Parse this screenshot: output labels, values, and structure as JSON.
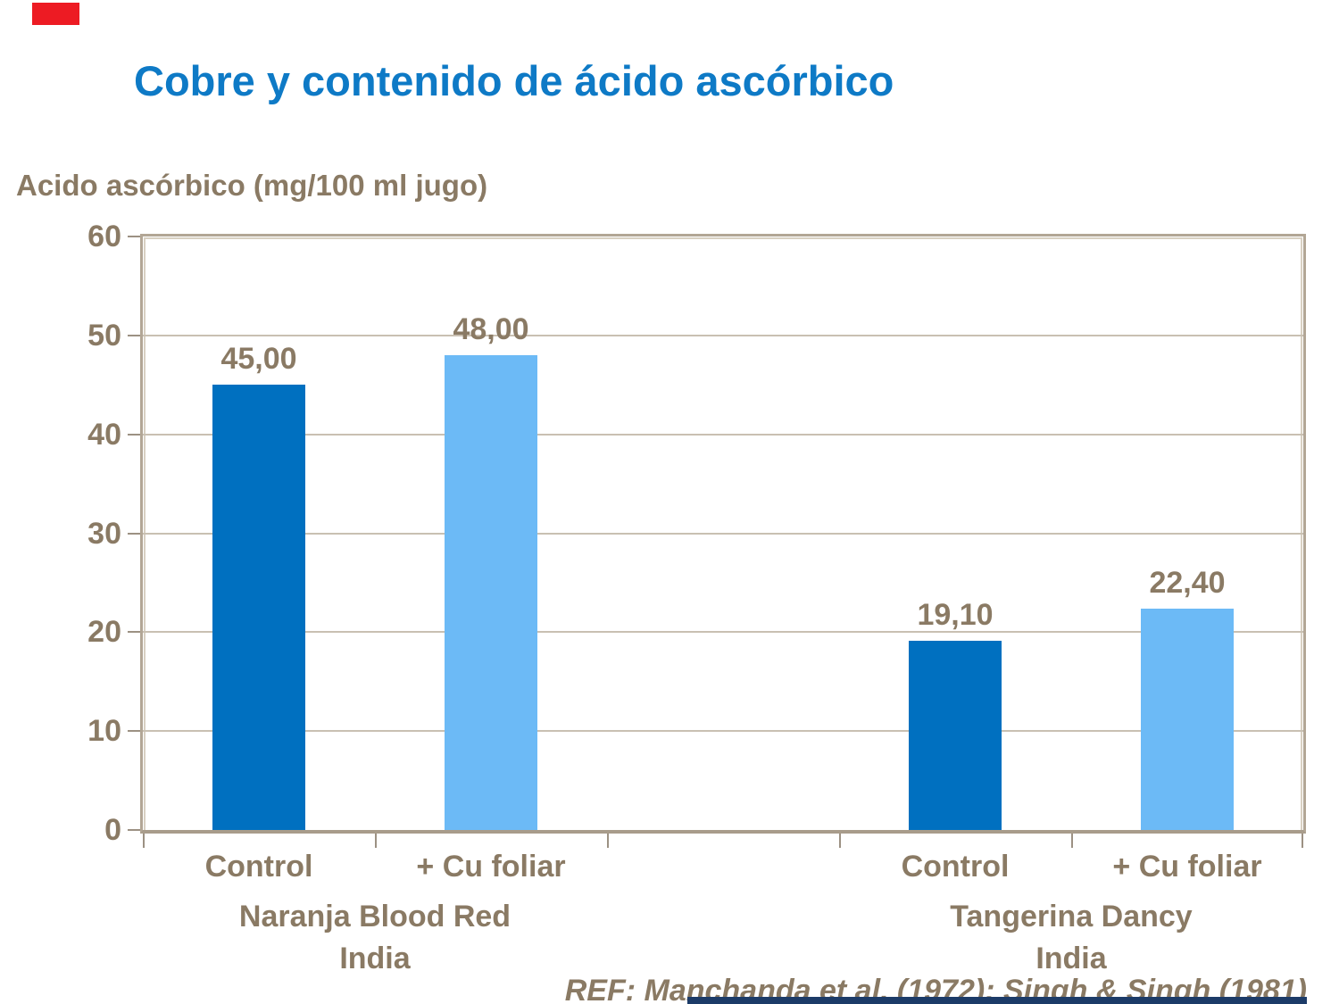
{
  "slide": {
    "title": "Cobre y contenido de ácido ascórbico",
    "y_axis_title": "Acido ascórbico (mg/100 ml jugo)",
    "reference": "REF: Manchanda et al. (1972); Singh & Singh (1981)",
    "colors": {
      "title_blue": "#0E7AC6",
      "text_brown": "#8A7A64",
      "bar_dark_blue": "#0070C0",
      "bar_light_blue": "#6CBAF6",
      "gridline_tan": "#C9C0B2",
      "plot_border_tan": "#B2A695",
      "red_marker": "#ED1B23",
      "bottom_strip_navy": "#1C3B68"
    }
  },
  "chart_data": {
    "type": "bar",
    "title": "Cobre y contenido de ácido ascórbico",
    "ylabel": "Acido ascórbico (mg/100 ml jugo)",
    "xlabel": "",
    "ylim": [
      0,
      60
    ],
    "yticks": [
      0,
      10,
      20,
      30,
      40,
      50,
      60
    ],
    "grid": "horizontal",
    "legend": "none",
    "num_slots": 5,
    "bars": [
      {
        "category": "Control",
        "group": 0,
        "slot": 0,
        "value": 45.0,
        "label": "45,00",
        "color": "#0070C0"
      },
      {
        "category": "+ Cu foliar",
        "group": 0,
        "slot": 1,
        "value": 48.0,
        "label": "48,00",
        "color": "#6CBAF6"
      },
      {
        "category": "Control",
        "group": 1,
        "slot": 3,
        "value": 19.1,
        "label": "19,10",
        "color": "#0070C0"
      },
      {
        "category": "+ Cu foliar",
        "group": 1,
        "slot": 4,
        "value": 22.4,
        "label": "22,40",
        "color": "#6CBAF6"
      }
    ],
    "groups": [
      {
        "name_lines": [
          "Naranja Blood Red",
          "India"
        ],
        "slot_range": [
          0,
          1
        ]
      },
      {
        "name_lines": [
          "Tangerina Dancy",
          "India"
        ],
        "slot_range": [
          3,
          4
        ]
      }
    ]
  }
}
